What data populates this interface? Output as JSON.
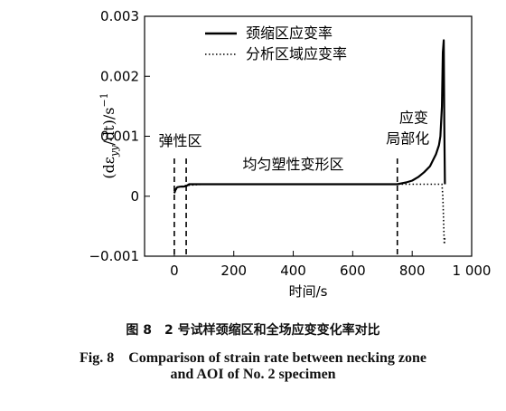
{
  "chart_data": {
    "type": "line",
    "xlabel": "时间/s",
    "ylabel_parts": {
      "pre": "(dε",
      "sub": "yy",
      "post": "/dt)/s",
      "sup": "−1"
    },
    "xlim": [
      -100,
      1000
    ],
    "ylim": [
      -0.001,
      0.003
    ],
    "xticks": [
      0,
      200,
      400,
      600,
      800,
      1000
    ],
    "xtick_labels": [
      "0",
      "200",
      "400",
      "600",
      "800",
      "1 000"
    ],
    "yticks": [
      -0.001,
      0,
      0.001,
      0.002,
      0.003
    ],
    "ytick_labels": [
      "−0.001",
      "0",
      "0.001",
      "0.002",
      "0.003"
    ],
    "legend": {
      "placement": "top-left",
      "entries": [
        "颈缩区应变率",
        "分析区域应变率"
      ]
    },
    "series": [
      {
        "name": "颈缩区应变率",
        "style": "solid",
        "x": [
          0,
          5,
          10,
          20,
          30,
          40,
          50,
          60,
          100,
          200,
          300,
          400,
          500,
          600,
          700,
          750,
          780,
          800,
          820,
          840,
          860,
          870,
          880,
          890,
          895,
          900,
          903,
          906,
          908,
          910
        ],
        "y": [
          5e-05,
          0.00012,
          0.00015,
          0.00016,
          0.00016,
          0.00017,
          0.0002,
          0.0002,
          0.0002,
          0.0002,
          0.0002,
          0.0002,
          0.0002,
          0.0002,
          0.0002,
          0.0002,
          0.00023,
          0.00026,
          0.00032,
          0.0004,
          0.0005,
          0.0006,
          0.0007,
          0.00085,
          0.001,
          0.0015,
          0.0024,
          0.0026,
          0.0012,
          0.0002
        ]
      },
      {
        "name": "分析区域应变率",
        "style": "dotted",
        "x": [
          0,
          10,
          40,
          100,
          300,
          600,
          750,
          800,
          850,
          880,
          895,
          900,
          903,
          906,
          908,
          910
        ],
        "y": [
          5e-05,
          0.00015,
          0.00018,
          0.0002,
          0.0002,
          0.0002,
          0.0002,
          0.0002,
          0.0002,
          0.0002,
          0.0002,
          0.0002,
          0.0,
          -0.0005,
          -0.0008,
          -0.0007
        ]
      }
    ],
    "vlines": [
      0,
      40,
      750
    ],
    "annotations": [
      {
        "text": "弹性区",
        "x": 20,
        "y": 0.00084
      },
      {
        "text": "均匀塑性变形区",
        "x": 400,
        "y": 0.00045
      },
      {
        "text": "应变",
        "x": 805,
        "y": 0.00123
      },
      {
        "text": "局部化",
        "x": 785,
        "y": 0.00088
      }
    ]
  },
  "caption": {
    "cn": "图 8　2 号试样颈缩区和全场应变变化率对比",
    "en_line1": "Fig. 8　Comparison of strain rate between necking zone",
    "en_line2": "and AOI of No. 2 specimen"
  }
}
